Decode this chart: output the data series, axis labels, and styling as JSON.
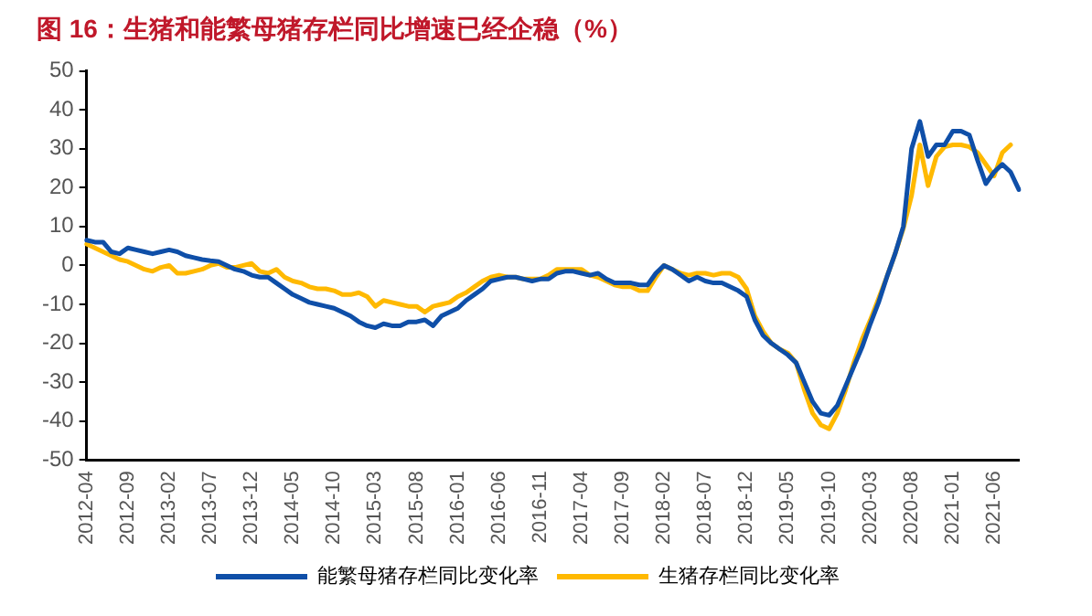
{
  "chart_data": {
    "type": "line",
    "title": "图 16：生猪和能繁母猪存栏同比增速已经企稳（%）",
    "categories": [
      "2012-04",
      null,
      null,
      null,
      null,
      "2012-09",
      null,
      null,
      null,
      null,
      "2013-02",
      null,
      null,
      null,
      null,
      "2013-07",
      null,
      null,
      null,
      null,
      "2013-12",
      null,
      null,
      null,
      null,
      "2014-05",
      null,
      null,
      null,
      null,
      "2014-10",
      null,
      null,
      null,
      null,
      "2015-03",
      null,
      null,
      null,
      null,
      "2015-08",
      null,
      null,
      null,
      null,
      "2016-01",
      null,
      null,
      null,
      null,
      "2016-06",
      null,
      null,
      null,
      null,
      "2016-11",
      null,
      null,
      null,
      null,
      "2017-04",
      null,
      null,
      null,
      null,
      "2017-09",
      null,
      null,
      null,
      null,
      "2018-02",
      null,
      null,
      null,
      null,
      "2018-07",
      null,
      null,
      null,
      null,
      "2018-12",
      null,
      null,
      null,
      null,
      "2019-05",
      null,
      null,
      null,
      null,
      "2019-10",
      null,
      null,
      null,
      null,
      "2020-03",
      null,
      null,
      null,
      null,
      "2020-08",
      null,
      null,
      null,
      null,
      "2021-01",
      null,
      null,
      null,
      null,
      "2021-06",
      null,
      null,
      null
    ],
    "series": [
      {
        "name": "能繁母猪存栏同比变化率",
        "color": "#0f4fa8",
        "values": [
          6.5,
          6,
          6,
          3.5,
          3,
          4.5,
          4,
          3.5,
          3,
          3.5,
          4,
          3.5,
          2.5,
          2,
          1.5,
          1.2,
          1,
          0,
          -1,
          -1.5,
          -2.5,
          -3,
          -3,
          -4.5,
          -6,
          -7.5,
          -8.5,
          -9.5,
          -10,
          -10.5,
          -11,
          -12,
          -13,
          -14.5,
          -15.5,
          -16,
          -15,
          -15.5,
          -15.5,
          -14.5,
          -14.5,
          -14,
          -15.5,
          -13,
          -12,
          -11,
          -9,
          -7.5,
          -6,
          -4,
          -3.5,
          -3,
          -3,
          -3.5,
          -4,
          -3.5,
          -3.5,
          -2,
          -1.5,
          -1.5,
          -2,
          -2.5,
          -2,
          -3.5,
          -4.5,
          -4.5,
          -4.5,
          -5,
          -5,
          -2,
          0,
          -1,
          -2.5,
          -4,
          -3,
          -4,
          -4.5,
          -4.5,
          -5.5,
          -6.5,
          -8,
          -14,
          -18,
          -20,
          -21.5,
          -23,
          -25,
          -30,
          -35,
          -38,
          -38.5,
          -36,
          -31,
          -26,
          -21,
          -15,
          -9.5,
          -3,
          3,
          10,
          30,
          37,
          28,
          31,
          31,
          34.5,
          34.5,
          33.5,
          27,
          21,
          24,
          26,
          24,
          19.5
        ]
      },
      {
        "name": "生猪存栏同比变化率",
        "color": "#ffb900",
        "values": [
          5.5,
          4.5,
          3.5,
          2.5,
          1.5,
          1,
          0,
          -1,
          -1.5,
          -0.5,
          0,
          -2,
          -2,
          -1.5,
          -1,
          0,
          0.5,
          -0.5,
          -0.5,
          0,
          0.5,
          -1.5,
          -2,
          -1,
          -3,
          -4,
          -4.5,
          -5.5,
          -6,
          -6,
          -6.5,
          -7.5,
          -7.5,
          -7,
          -8,
          -10.5,
          -9,
          -9.5,
          -10,
          -10.5,
          -10.5,
          -12,
          -10.5,
          -10,
          -9.5,
          -8,
          -7,
          -5.5,
          -4,
          -3,
          -2.5,
          -3,
          -3,
          -3.5,
          -3.5,
          -3.5,
          -2.5,
          -1,
          -1,
          -1,
          -1,
          -2.5,
          -3,
          -4,
          -5,
          -5.5,
          -5.5,
          -6.5,
          -6.5,
          -3,
          0,
          -1,
          -2,
          -2.5,
          -2,
          -2,
          -2.5,
          -2,
          -2,
          -3,
          -6,
          -13,
          -17,
          -20,
          -21.5,
          -22.5,
          -25,
          -32,
          -38,
          -41,
          -42,
          -38,
          -32,
          -25,
          -19,
          -14,
          -8.5,
          -3,
          3,
          9.5,
          18,
          31,
          20.5,
          28,
          30.5,
          31,
          31,
          30.5,
          29,
          26,
          23,
          29,
          31,
          null
        ]
      }
    ],
    "ylim": [
      -50,
      50
    ],
    "yticks": [
      -50,
      -40,
      -30,
      -20,
      -10,
      0,
      10,
      20,
      30,
      40,
      50
    ],
    "grid": false,
    "legend": "bottom",
    "marker": "none",
    "line_style": "solid"
  }
}
